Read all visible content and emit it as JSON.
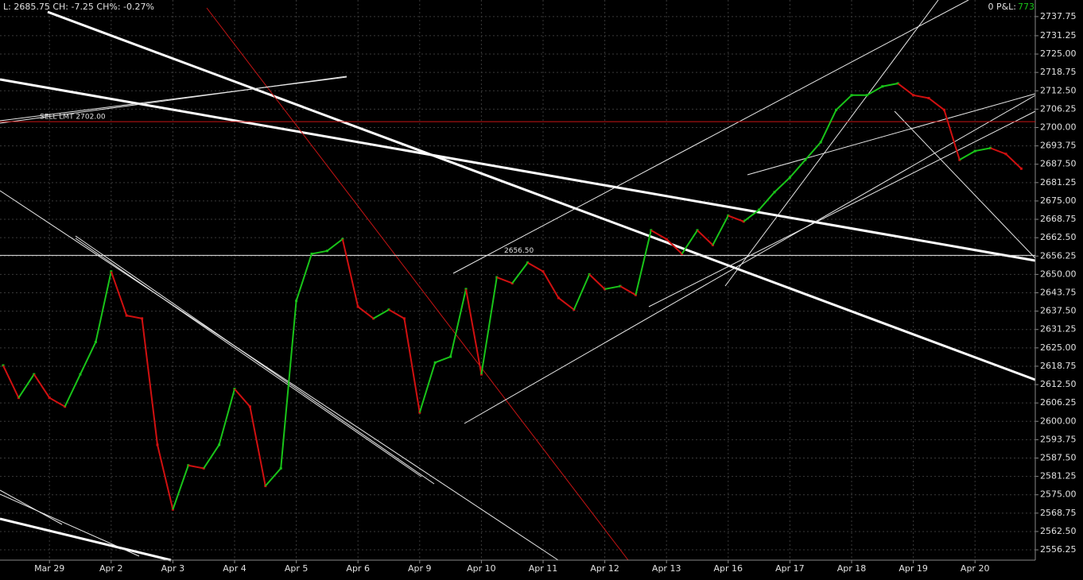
{
  "header": {
    "quote": "L: 2685.75 CH: -7.25 CH%: -0.27%",
    "pnl_label": "0 P&L:",
    "pnl_value": "773"
  },
  "chart_data": {
    "type": "line",
    "up_color": "#19c419",
    "down_color": "#d01010",
    "grid": true,
    "categories": [
      null,
      null,
      null,
      "Mar 29",
      null,
      null,
      null,
      "Apr 2",
      null,
      null,
      null,
      "Apr 3",
      null,
      null,
      null,
      "Apr 4",
      null,
      null,
      null,
      "Apr 5",
      null,
      null,
      null,
      "Apr 6",
      null,
      null,
      null,
      "Apr 9",
      null,
      null,
      null,
      "Apr 10",
      null,
      null,
      null,
      "Apr 11",
      null,
      null,
      null,
      "Apr 12",
      null,
      null,
      null,
      "Apr 13",
      null,
      null,
      null,
      "Apr 16",
      null,
      null,
      null,
      "Apr 17",
      null,
      null,
      null,
      "Apr 18",
      null,
      null,
      null,
      "Apr 19",
      null,
      null,
      null,
      "Apr 20",
      null,
      null,
      null
    ],
    "values": [
      2619,
      2608,
      2616,
      2608,
      2605,
      2616,
      2627,
      2651,
      2636,
      2635,
      2592,
      2570,
      2585,
      2584,
      2592,
      2611,
      2605,
      2578,
      2584,
      2641,
      2657,
      2658,
      2662,
      2639,
      2635,
      2638,
      2635,
      2603,
      2620,
      2622,
      2645,
      2616,
      2649,
      2647,
      2654,
      2651,
      2642,
      2638,
      2650,
      2645,
      2646,
      2643,
      2665,
      2662,
      2657,
      2665,
      2660,
      2670,
      2668,
      2672,
      2678,
      2683,
      2689,
      2695,
      2706,
      2711,
      2711,
      2714,
      2715,
      2711,
      2710,
      2706,
      2689,
      2692,
      2693,
      2691,
      2686
    ],
    "ylim": [
      2552.75,
      2743.4
    ],
    "yticks": [
      2737.75,
      2731.25,
      {
        "value": 2725,
        "label": "2725.00"
      },
      2718.75,
      {
        "value": 2712.5,
        "label": "2712.50"
      },
      2706.25,
      {
        "value": 2700,
        "label": "2700.00"
      },
      2693.75,
      {
        "value": 2687.5,
        "label": "2687.50"
      },
      2681.25,
      {
        "value": 2675,
        "label": "2675.00"
      },
      2668.75,
      {
        "value": 2662.5,
        "label": "2662.50"
      },
      2656.25,
      {
        "value": 2650,
        "label": "2650.00"
      },
      2643.75,
      {
        "value": 2637.5,
        "label": "2637.50"
      },
      2631.25,
      {
        "value": 2625,
        "label": "2625.00"
      },
      2618.75,
      {
        "value": 2612.5,
        "label": "2612.50"
      },
      2606.25,
      {
        "value": 2600,
        "label": "2600.00"
      },
      2593.75,
      {
        "value": 2587.5,
        "label": "2587.50"
      },
      2581.25,
      {
        "value": 2575,
        "label": "2575.00"
      },
      2568.75,
      {
        "value": 2562.5,
        "label": "2562.50"
      },
      2556.25
    ],
    "levels": [
      {
        "value": 2702,
        "label": "SELL LMT 2702.00",
        "color": "#c81414"
      },
      {
        "value": 2656.5,
        "label": "2656.50",
        "color": "#e8e8e8"
      }
    ]
  }
}
